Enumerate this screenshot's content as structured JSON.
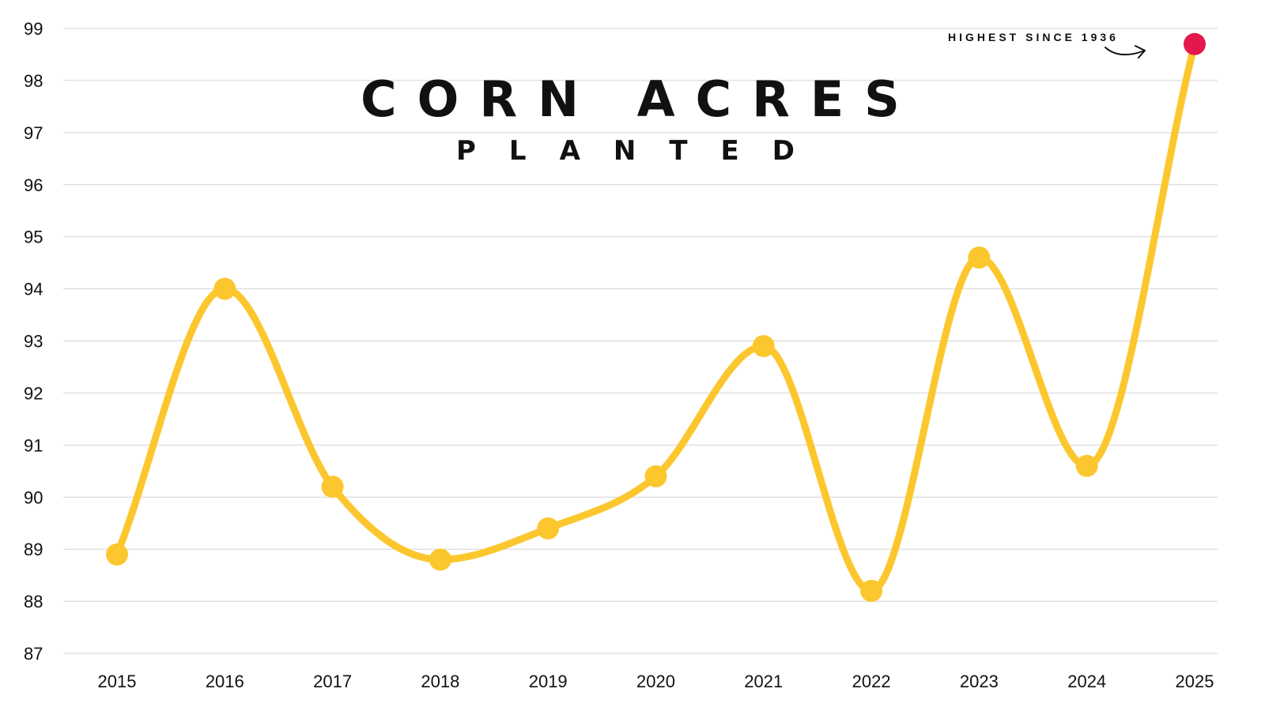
{
  "chart_data": {
    "type": "line",
    "title": "CORN ACRES",
    "subtitle": "PLANTED",
    "xlabel": "",
    "ylabel": "",
    "x": [
      "2015",
      "2016",
      "2017",
      "2018",
      "2019",
      "2020",
      "2021",
      "2022",
      "2023",
      "2024",
      "2025"
    ],
    "series": [
      {
        "values": [
          88.9,
          94.0,
          90.2,
          88.8,
          89.4,
          90.4,
          92.9,
          88.2,
          94.6,
          90.6,
          98.7
        ],
        "color": "#fcc72e",
        "highlight_color": "#e4184d",
        "highlight_index": 10
      }
    ],
    "ylim": [
      87,
      99
    ],
    "yticks": [
      87,
      88,
      89,
      90,
      91,
      92,
      93,
      94,
      95,
      96,
      97,
      98,
      99
    ],
    "grid": true,
    "smooth": true,
    "annotation": {
      "text": "HIGHEST SINCE 1936",
      "point_index": 10
    }
  }
}
